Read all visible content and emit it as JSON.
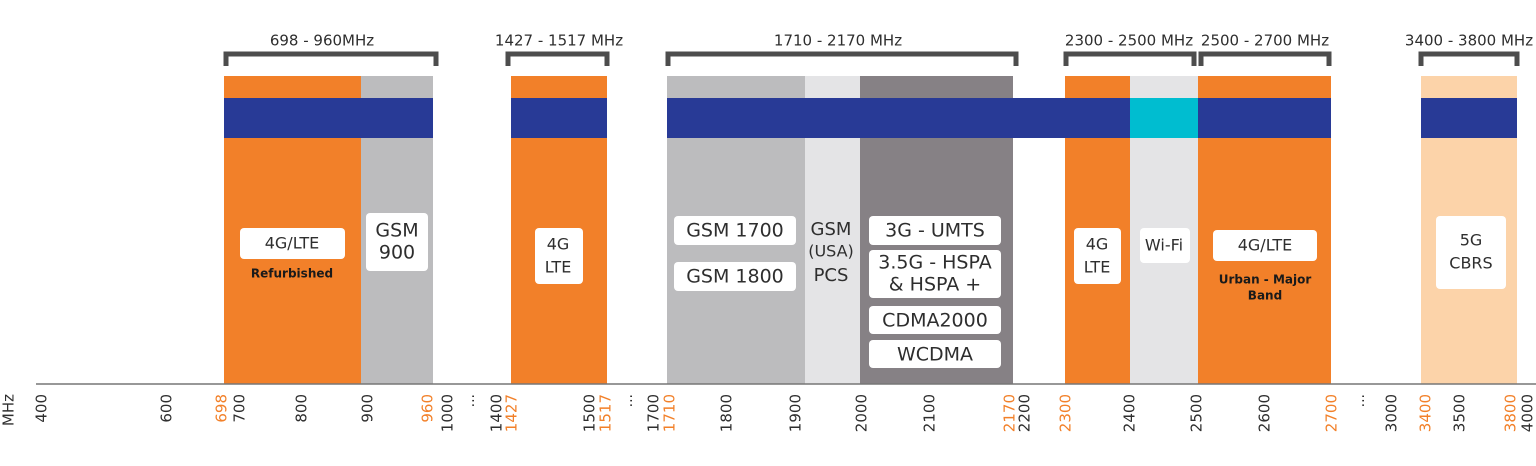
{
  "axis_unit": "MHz",
  "brackets": [
    "698 - 960MHz",
    "1427 - 1517 MHz",
    "1710 - 2170 MHz",
    "2300 - 2500 MHz",
    "2500 - 2700 MHz",
    "3400 - 3800 MHz"
  ],
  "labels": [
    "4G/LTE",
    "Refurbished",
    "GSM",
    "900",
    "4G",
    "LTE",
    "GSM 1700",
    "GSM 1800",
    "GSM",
    "(USA)",
    "PCS",
    "3G - UMTS",
    "3.5G - HSPA",
    "& HSPA +",
    "CDMA2000",
    "WCDMA",
    "4G",
    "LTE",
    "Wi-Fi",
    "4G/LTE",
    "Urban - Major",
    "Band",
    "5G",
    "CBRS"
  ],
  "breaks": [
    "...",
    "...",
    "..."
  ],
  "ticks": [
    {
      "label": "400",
      "color": "#2e2e2e"
    },
    {
      "label": "600",
      "color": "#2e2e2e"
    },
    {
      "label": "698",
      "color": "#f28029"
    },
    {
      "label": "700",
      "color": "#2e2e2e"
    },
    {
      "label": "800",
      "color": "#2e2e2e"
    },
    {
      "label": "900",
      "color": "#2e2e2e"
    },
    {
      "label": "960",
      "color": "#f28029"
    },
    {
      "label": "1000",
      "color": "#2e2e2e"
    },
    {
      "label": "1400",
      "color": "#2e2e2e"
    },
    {
      "label": "1427",
      "color": "#f28029"
    },
    {
      "label": "1500",
      "color": "#2e2e2e"
    },
    {
      "label": "1517",
      "color": "#f28029"
    },
    {
      "label": "1700",
      "color": "#2e2e2e"
    },
    {
      "label": "1710",
      "color": "#f28029"
    },
    {
      "label": "1800",
      "color": "#2e2e2e"
    },
    {
      "label": "1900",
      "color": "#2e2e2e"
    },
    {
      "label": "2000",
      "color": "#2e2e2e"
    },
    {
      "label": "2100",
      "color": "#2e2e2e"
    },
    {
      "label": "2170",
      "color": "#f28029"
    },
    {
      "label": "2200",
      "color": "#2e2e2e"
    },
    {
      "label": "2300",
      "color": "#f28029"
    },
    {
      "label": "2400",
      "color": "#2e2e2e"
    },
    {
      "label": "2500",
      "color": "#2e2e2e"
    },
    {
      "label": "2600",
      "color": "#2e2e2e"
    },
    {
      "label": "2700",
      "color": "#f28029"
    },
    {
      "label": "3000",
      "color": "#2e2e2e"
    },
    {
      "label": "3400",
      "color": "#f28029"
    },
    {
      "label": "3500",
      "color": "#2e2e2e"
    },
    {
      "label": "3800",
      "color": "#f28029"
    },
    {
      "label": "4000",
      "color": "#2e2e2e"
    }
  ]
}
